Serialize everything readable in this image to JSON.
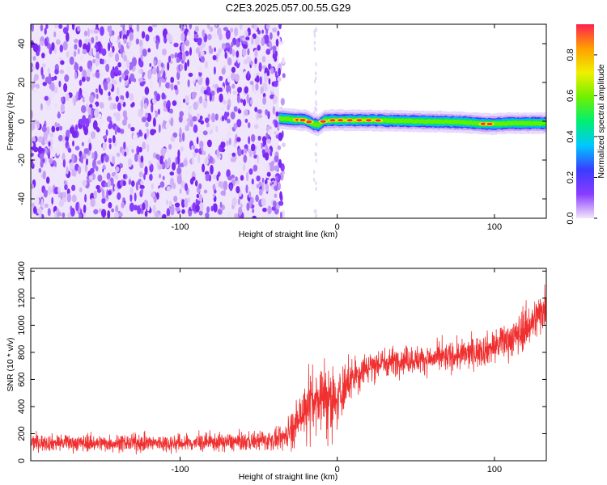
{
  "title": "C2E3.2025.057.00.55.G29",
  "chart_data": [
    {
      "type": "heatmap",
      "xlabel": "Height of straight line (km)",
      "ylabel": "Frequency (Hz)",
      "xlim": [
        -195,
        133
      ],
      "ylim": [
        -50,
        50
      ],
      "xticks": [
        -100,
        0,
        100
      ],
      "yticks": [
        -40,
        -20,
        0,
        20,
        40
      ],
      "noise_region_x": [
        -195,
        -37
      ],
      "signal_band": {
        "x": [
          -37,
          133
        ],
        "center_hz": [
          [
            -37,
            1.5
          ],
          [
            -30,
            1.0
          ],
          [
            -20,
            0.5
          ],
          [
            -15,
            -1.5
          ],
          [
            -12,
            -2.0
          ],
          [
            -8,
            0.5
          ],
          [
            0,
            0.5
          ],
          [
            20,
            0.5
          ],
          [
            50,
            0.0
          ],
          [
            80,
            -0.5
          ],
          [
            95,
            -1.5
          ],
          [
            110,
            -1.0
          ],
          [
            133,
            -1.0
          ]
        ],
        "peak_hz_positions_km": [
          -25,
          -22,
          -18,
          -9,
          -3,
          2,
          8,
          14,
          20,
          26,
          93,
          97
        ]
      },
      "colorbar": {
        "label": "Normalized spectral amplitude",
        "ticks": [
          0.0,
          0.2,
          0.4,
          0.6,
          0.8
        ],
        "range": [
          0,
          0.95
        ],
        "colors": [
          "#f3e6fb",
          "#8a3cff",
          "#3a3cff",
          "#00c8ff",
          "#00f070",
          "#70f000",
          "#f0f000",
          "#ffa000",
          "#ff2050"
        ]
      }
    },
    {
      "type": "line",
      "xlabel": "Height of straight line (km)",
      "ylabel": "SNR (10 * v/v)",
      "xlim": [
        -195,
        133
      ],
      "ylim": [
        0,
        1420
      ],
      "xticks": [
        -100,
        0,
        100
      ],
      "yticks": [
        0,
        200,
        400,
        600,
        800,
        1000,
        1200,
        1400
      ],
      "color": "#f03030",
      "series_envelope": [
        {
          "x": -195,
          "mean": 135,
          "spread": 55
        },
        {
          "x": -150,
          "mean": 130,
          "spread": 55
        },
        {
          "x": -100,
          "mean": 130,
          "spread": 60
        },
        {
          "x": -60,
          "mean": 140,
          "spread": 60
        },
        {
          "x": -35,
          "mean": 155,
          "spread": 70
        },
        {
          "x": -28,
          "mean": 250,
          "spread": 130
        },
        {
          "x": -20,
          "mean": 420,
          "spread": 200
        },
        {
          "x": -10,
          "mean": 480,
          "spread": 230
        },
        {
          "x": -5,
          "mean": 420,
          "spread": 220
        },
        {
          "x": 0,
          "mean": 450,
          "spread": 160
        },
        {
          "x": 10,
          "mean": 620,
          "spread": 130
        },
        {
          "x": 20,
          "mean": 700,
          "spread": 110
        },
        {
          "x": 40,
          "mean": 745,
          "spread": 90
        },
        {
          "x": 60,
          "mean": 750,
          "spread": 90
        },
        {
          "x": 80,
          "mean": 780,
          "spread": 100
        },
        {
          "x": 100,
          "mean": 840,
          "spread": 110
        },
        {
          "x": 115,
          "mean": 930,
          "spread": 130
        },
        {
          "x": 125,
          "mean": 1030,
          "spread": 140
        },
        {
          "x": 133,
          "mean": 1150,
          "spread": 150
        }
      ]
    }
  ]
}
